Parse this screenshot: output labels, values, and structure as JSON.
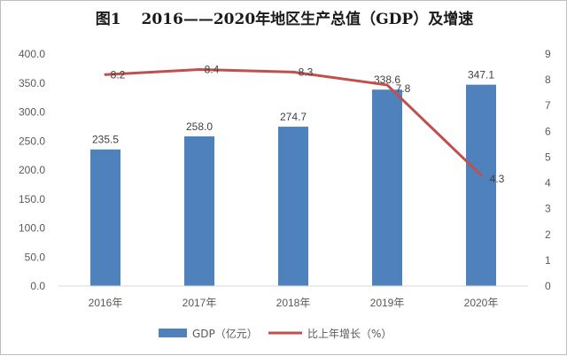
{
  "chart_data": {
    "type": "bar",
    "title": "图1　 2016——2020年地区生产总值（GDP）及增速",
    "categories": [
      "2016年",
      "2017年",
      "2018年",
      "2019年",
      "2020年"
    ],
    "series": [
      {
        "name": "GDP（亿元）",
        "type": "bar",
        "axis": "left",
        "values": [
          235.5,
          258.0,
          274.7,
          338.6,
          347.1
        ],
        "labels": [
          "235.5",
          "258.0",
          "274.7",
          "338.6",
          "347.1"
        ],
        "color": "#4f81bd"
      },
      {
        "name": "比上年增长（%）",
        "type": "line",
        "axis": "right",
        "values": [
          8.2,
          8.4,
          8.3,
          7.8,
          4.3
        ],
        "labels": [
          "8.2",
          "8.4",
          "8.3",
          "7.8",
          "4.3"
        ],
        "color": "#c0504d"
      }
    ],
    "y_left": {
      "min": 0,
      "max": 400,
      "ticks": [
        "0.0",
        "50.0",
        "100.0",
        "150.0",
        "200.0",
        "250.0",
        "300.0",
        "350.0",
        "400.0"
      ]
    },
    "y_right": {
      "min": 0,
      "max": 9,
      "ticks": [
        "0",
        "1",
        "2",
        "3",
        "4",
        "5",
        "6",
        "7",
        "8",
        "9"
      ]
    },
    "grid": false,
    "legend_position": "bottom"
  }
}
